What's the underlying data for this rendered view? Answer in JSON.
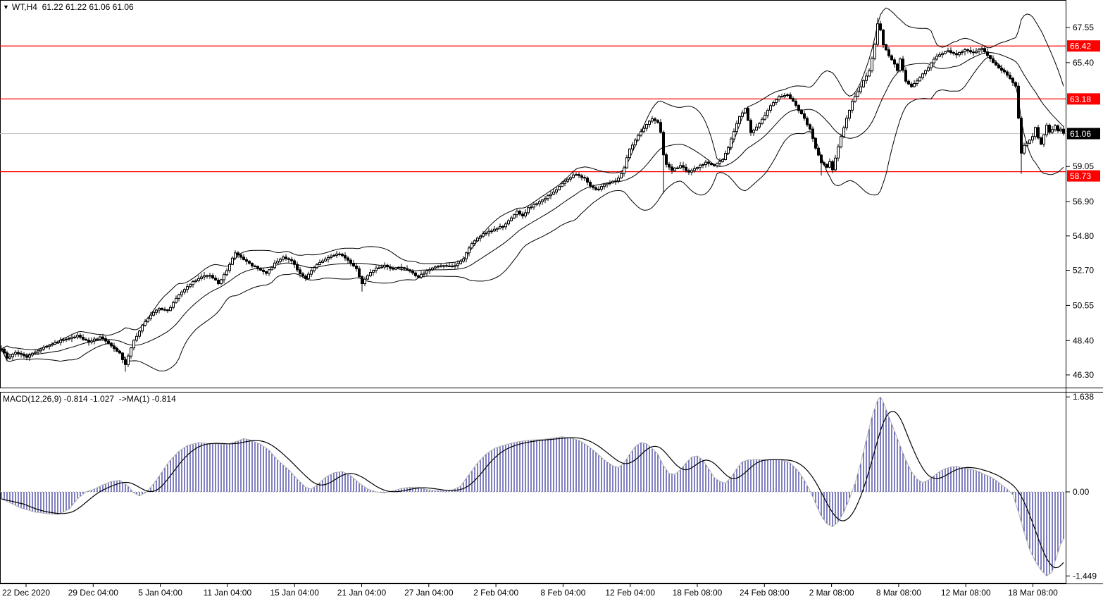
{
  "header": {
    "collapse_icon": "▼",
    "symbol": "WT,H4",
    "ohlc_values": "61.22 61.22 61.06 61.06"
  },
  "macd_panel": {
    "label": "MACD(12,26,9) -0.814 -1.027  ->MA(1) -0.814",
    "params": {
      "fast": 12,
      "slow": 26,
      "signal": 9
    },
    "displayed_values": {
      "macd": -0.814,
      "signal": -1.027,
      "ma": -0.814
    },
    "axis_ticks": [
      "1.638",
      "0.00",
      "-1.449"
    ],
    "axis_tick_values": [
      1.638,
      0.0,
      -1.449
    ],
    "colors": {
      "histogram": "#000080",
      "envelope": "#b2b2b2",
      "signal_line": "#000000",
      "zero_line": "#888888"
    }
  },
  "price_axis": {
    "ticks": [
      "67.55",
      "65.40",
      "59.05",
      "56.90",
      "54.80",
      "52.70",
      "50.55",
      "48.40",
      "46.30"
    ],
    "tick_values": [
      67.55,
      65.4,
      59.05,
      56.9,
      54.8,
      52.7,
      50.55,
      48.4,
      46.3
    ]
  },
  "level_lines": [
    {
      "value": 66.42,
      "label": "66.42",
      "color": "#ff0000"
    },
    {
      "value": 63.18,
      "label": "63.18",
      "color": "#ff0000"
    },
    {
      "value": 58.73,
      "label": "58.73",
      "color": "#ff0000"
    }
  ],
  "current_price": {
    "value": 61.06,
    "label": "61.06",
    "line_color": "#c0c0c0",
    "label_bg": "#000000"
  },
  "time_axis": {
    "labels": [
      "22 Dec 2020",
      "29 Dec 04:00",
      "5 Jan 04:00",
      "11 Jan 04:00",
      "15 Jan 04:00",
      "21 Jan 04:00",
      "27 Jan 04:00",
      "2 Feb 04:00",
      "8 Feb 04:00",
      "12 Feb 04:00",
      "18 Feb 08:00",
      "24 Feb 08:00",
      "2 Mar 08:00",
      "8 Mar 08:00",
      "12 Mar 08:00",
      "18 Mar 08:00"
    ]
  },
  "chart_data": {
    "type": "candlestick",
    "symbol": "WT",
    "timeframe": "H4",
    "bar_count": 378,
    "price_range": [
      46.3,
      67.55
    ],
    "candle_colors": {
      "up_fill": "#ffffff",
      "down_fill": "#000000",
      "outline": "#000000"
    },
    "indicators": {
      "bollinger": {
        "period": 20,
        "deviation": 2,
        "color": "#000000"
      }
    },
    "close_anchors": [
      [
        0,
        47.9
      ],
      [
        2,
        47.3
      ],
      [
        5,
        47.7
      ],
      [
        9,
        47.4
      ],
      [
        13,
        47.8
      ],
      [
        18,
        48.2
      ],
      [
        23,
        48.5
      ],
      [
        27,
        48.7
      ],
      [
        31,
        48.3
      ],
      [
        35,
        48.6
      ],
      [
        39,
        48.1
      ],
      [
        42,
        47.6
      ],
      [
        44,
        46.9
      ],
      [
        45,
        47.5
      ],
      [
        47,
        48.4
      ],
      [
        50,
        49.3
      ],
      [
        53,
        50.0
      ],
      [
        56,
        50.4
      ],
      [
        59,
        50.2
      ],
      [
        62,
        51.0
      ],
      [
        65,
        51.5
      ],
      [
        68,
        52.0
      ],
      [
        71,
        52.3
      ],
      [
        74,
        52.4
      ],
      [
        77,
        51.9
      ],
      [
        80,
        52.7
      ],
      [
        83,
        53.8
      ],
      [
        85,
        53.5
      ],
      [
        88,
        53.1
      ],
      [
        91,
        52.8
      ],
      [
        94,
        52.5
      ],
      [
        97,
        53.1
      ],
      [
        100,
        53.5
      ],
      [
        103,
        53.3
      ],
      [
        106,
        52.5
      ],
      [
        108,
        52.2
      ],
      [
        111,
        52.9
      ],
      [
        114,
        53.3
      ],
      [
        117,
        53.6
      ],
      [
        120,
        53.7
      ],
      [
        123,
        53.3
      ],
      [
        126,
        52.8
      ],
      [
        128,
        51.9
      ],
      [
        130,
        52.4
      ],
      [
        133,
        52.8
      ],
      [
        136,
        53.0
      ],
      [
        139,
        52.8
      ],
      [
        142,
        52.9
      ],
      [
        145,
        52.6
      ],
      [
        148,
        52.3
      ],
      [
        151,
        52.7
      ],
      [
        154,
        52.9
      ],
      [
        157,
        53.0
      ],
      [
        160,
        52.9
      ],
      [
        162,
        53.1
      ],
      [
        164,
        53.4
      ],
      [
        166,
        54.1
      ],
      [
        169,
        54.7
      ],
      [
        172,
        55.0
      ],
      [
        175,
        55.2
      ],
      [
        178,
        55.4
      ],
      [
        181,
        55.9
      ],
      [
        183,
        56.3
      ],
      [
        185,
        56.0
      ],
      [
        187,
        56.5
      ],
      [
        190,
        56.8
      ],
      [
        193,
        57.1
      ],
      [
        196,
        57.5
      ],
      [
        199,
        58.0
      ],
      [
        202,
        58.4
      ],
      [
        204,
        58.6
      ],
      [
        207,
        58.3
      ],
      [
        209,
        57.9
      ],
      [
        211,
        57.6
      ],
      [
        214,
        57.9
      ],
      [
        217,
        58.1
      ],
      [
        219,
        58.3
      ],
      [
        221,
        59.0
      ],
      [
        223,
        60.1
      ],
      [
        225,
        60.7
      ],
      [
        227,
        61.2
      ],
      [
        229,
        61.6
      ],
      [
        231,
        62.0
      ],
      [
        233,
        61.7
      ],
      [
        234,
        61.1
      ],
      [
        235,
        59.8
      ],
      [
        236,
        59.2
      ],
      [
        238,
        58.8
      ],
      [
        241,
        59.1
      ],
      [
        244,
        58.7
      ],
      [
        247,
        59.0
      ],
      [
        250,
        59.3
      ],
      [
        253,
        59.1
      ],
      [
        256,
        59.5
      ],
      [
        258,
        60.2
      ],
      [
        260,
        61.2
      ],
      [
        262,
        62.1
      ],
      [
        264,
        62.6
      ],
      [
        265,
        61.9
      ],
      [
        266,
        61.1
      ],
      [
        268,
        61.5
      ],
      [
        270,
        61.9
      ],
      [
        272,
        62.5
      ],
      [
        274,
        63.0
      ],
      [
        276,
        63.3
      ],
      [
        279,
        63.4
      ],
      [
        281,
        63.0
      ],
      [
        283,
        62.5
      ],
      [
        285,
        62.0
      ],
      [
        287,
        61.3
      ],
      [
        289,
        60.2
      ],
      [
        291,
        59.3
      ],
      [
        293,
        59.0
      ],
      [
        294,
        59.3
      ],
      [
        295,
        58.8
      ],
      [
        296,
        59.6
      ],
      [
        298,
        60.9
      ],
      [
        300,
        62.0
      ],
      [
        302,
        63.0
      ],
      [
        304,
        63.6
      ],
      [
        306,
        64.3
      ],
      [
        308,
        64.9
      ],
      [
        310,
        66.5
      ],
      [
        311,
        67.8
      ],
      [
        312,
        67.4
      ],
      [
        313,
        66.5
      ],
      [
        315,
        65.8
      ],
      [
        317,
        65.3
      ],
      [
        318,
        64.9
      ],
      [
        319,
        65.6
      ],
      [
        321,
        64.3
      ],
      [
        323,
        63.9
      ],
      [
        325,
        64.3
      ],
      [
        327,
        64.7
      ],
      [
        329,
        65.1
      ],
      [
        331,
        65.6
      ],
      [
        333,
        65.9
      ],
      [
        336,
        66.1
      ],
      [
        339,
        65.9
      ],
      [
        342,
        66.2
      ],
      [
        345,
        66.0
      ],
      [
        348,
        66.3
      ],
      [
        350,
        65.8
      ],
      [
        352,
        65.4
      ],
      [
        354,
        65.1
      ],
      [
        356,
        64.8
      ],
      [
        358,
        64.4
      ],
      [
        360,
        64.0
      ],
      [
        361,
        62.0
      ],
      [
        362,
        59.9
      ],
      [
        363,
        60.3
      ],
      [
        364,
        60.5
      ],
      [
        366,
        60.9
      ],
      [
        367,
        61.4
      ],
      [
        368,
        60.8
      ],
      [
        369,
        60.4
      ],
      [
        370,
        61.0
      ],
      [
        371,
        61.6
      ],
      [
        372,
        61.1
      ],
      [
        373,
        61.3
      ],
      [
        374,
        61.5
      ],
      [
        375,
        61.2
      ],
      [
        376,
        61.3
      ],
      [
        377,
        61.06
      ]
    ],
    "wick_events": [
      {
        "bar": 44,
        "low": 46.5
      },
      {
        "bar": 128,
        "low": 51.4
      },
      {
        "bar": 235,
        "low": 57.4
      },
      {
        "bar": 291,
        "low": 58.5
      },
      {
        "bar": 311,
        "high": 68.15
      },
      {
        "bar": 362,
        "low": 58.6
      }
    ],
    "macd_anchors": [
      [
        0,
        -0.12
      ],
      [
        7,
        -0.28
      ],
      [
        12,
        -0.35
      ],
      [
        17,
        -0.38
      ],
      [
        20,
        -0.39
      ],
      [
        24,
        -0.3
      ],
      [
        27,
        -0.12
      ],
      [
        30,
        0.0
      ],
      [
        33,
        0.05
      ],
      [
        36,
        0.12
      ],
      [
        39,
        0.18
      ],
      [
        42,
        0.2
      ],
      [
        45,
        0.1
      ],
      [
        47,
        -0.02
      ],
      [
        49,
        -0.07
      ],
      [
        51,
        -0.02
      ],
      [
        53,
        0.08
      ],
      [
        55,
        0.2
      ],
      [
        58,
        0.42
      ],
      [
        60,
        0.55
      ],
      [
        63,
        0.7
      ],
      [
        66,
        0.8
      ],
      [
        70,
        0.85
      ],
      [
        75,
        0.83
      ],
      [
        80,
        0.82
      ],
      [
        84,
        0.88
      ],
      [
        86,
        0.92
      ],
      [
        88,
        0.9
      ],
      [
        92,
        0.82
      ],
      [
        95,
        0.72
      ],
      [
        98,
        0.55
      ],
      [
        102,
        0.38
      ],
      [
        105,
        0.22
      ],
      [
        108,
        0.08
      ],
      [
        110,
        0.05
      ],
      [
        112,
        0.12
      ],
      [
        115,
        0.25
      ],
      [
        118,
        0.33
      ],
      [
        121,
        0.35
      ],
      [
        124,
        0.28
      ],
      [
        127,
        0.15
      ],
      [
        130,
        0.05
      ],
      [
        133,
        0.0
      ],
      [
        136,
        -0.02
      ],
      [
        139,
        0.02
      ],
      [
        142,
        0.06
      ],
      [
        145,
        0.08
      ],
      [
        148,
        0.08
      ],
      [
        151,
        0.04
      ],
      [
        154,
        0.02
      ],
      [
        157,
        0.02
      ],
      [
        160,
        0.03
      ],
      [
        163,
        0.1
      ],
      [
        166,
        0.3
      ],
      [
        169,
        0.5
      ],
      [
        172,
        0.65
      ],
      [
        175,
        0.75
      ],
      [
        178,
        0.8
      ],
      [
        181,
        0.84
      ],
      [
        184,
        0.87
      ],
      [
        187,
        0.89
      ],
      [
        190,
        0.9
      ],
      [
        193,
        0.91
      ],
      [
        196,
        0.93
      ],
      [
        199,
        0.95
      ],
      [
        202,
        0.93
      ],
      [
        205,
        0.89
      ],
      [
        208,
        0.8
      ],
      [
        211,
        0.68
      ],
      [
        214,
        0.55
      ],
      [
        217,
        0.45
      ],
      [
        219,
        0.42
      ],
      [
        221,
        0.5
      ],
      [
        223,
        0.65
      ],
      [
        225,
        0.78
      ],
      [
        227,
        0.85
      ],
      [
        229,
        0.83
      ],
      [
        231,
        0.75
      ],
      [
        233,
        0.65
      ],
      [
        235,
        0.45
      ],
      [
        237,
        0.32
      ],
      [
        239,
        0.3
      ],
      [
        241,
        0.38
      ],
      [
        243,
        0.5
      ],
      [
        245,
        0.6
      ],
      [
        247,
        0.62
      ],
      [
        249,
        0.55
      ],
      [
        251,
        0.4
      ],
      [
        253,
        0.25
      ],
      [
        255,
        0.18
      ],
      [
        257,
        0.15
      ],
      [
        259,
        0.25
      ],
      [
        261,
        0.4
      ],
      [
        263,
        0.52
      ],
      [
        265,
        0.55
      ],
      [
        268,
        0.56
      ],
      [
        271,
        0.55
      ],
      [
        274,
        0.56
      ],
      [
        277,
        0.55
      ],
      [
        280,
        0.5
      ],
      [
        283,
        0.35
      ],
      [
        285,
        0.2
      ],
      [
        287,
        0.02
      ],
      [
        289,
        -0.2
      ],
      [
        291,
        -0.42
      ],
      [
        293,
        -0.55
      ],
      [
        295,
        -0.6
      ],
      [
        297,
        -0.52
      ],
      [
        299,
        -0.35
      ],
      [
        301,
        -0.12
      ],
      [
        303,
        0.15
      ],
      [
        305,
        0.5
      ],
      [
        307,
        0.9
      ],
      [
        309,
        1.3
      ],
      [
        311,
        1.58
      ],
      [
        312,
        1.638
      ],
      [
        313,
        1.55
      ],
      [
        315,
        1.3
      ],
      [
        317,
        1.05
      ],
      [
        319,
        0.8
      ],
      [
        321,
        0.55
      ],
      [
        323,
        0.35
      ],
      [
        325,
        0.22
      ],
      [
        327,
        0.16
      ],
      [
        329,
        0.2
      ],
      [
        331,
        0.28
      ],
      [
        333,
        0.35
      ],
      [
        335,
        0.4
      ],
      [
        337,
        0.43
      ],
      [
        339,
        0.44
      ],
      [
        341,
        0.42
      ],
      [
        343,
        0.4
      ],
      [
        345,
        0.38
      ],
      [
        347,
        0.35
      ],
      [
        349,
        0.3
      ],
      [
        351,
        0.26
      ],
      [
        353,
        0.2
      ],
      [
        355,
        0.12
      ],
      [
        357,
        0.05
      ],
      [
        359,
        -0.05
      ],
      [
        361,
        -0.35
      ],
      [
        363,
        -0.7
      ],
      [
        365,
        -1.0
      ],
      [
        367,
        -1.2
      ],
      [
        369,
        -1.35
      ],
      [
        371,
        -1.449
      ],
      [
        373,
        -1.38
      ],
      [
        374,
        -1.2
      ],
      [
        375,
        -1.05
      ],
      [
        376,
        -0.9
      ],
      [
        377,
        -0.814
      ]
    ]
  }
}
